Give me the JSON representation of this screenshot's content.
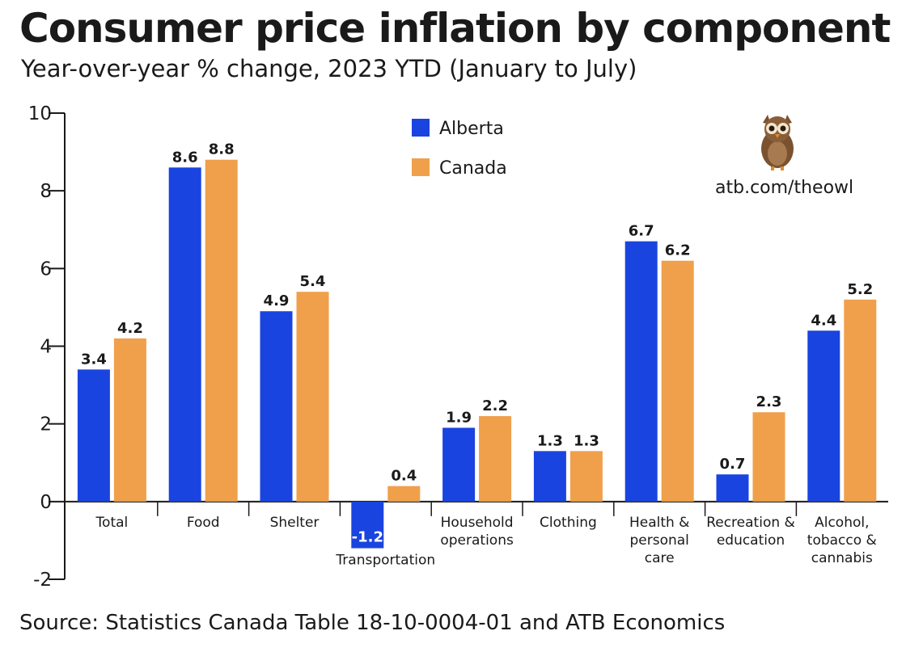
{
  "title": "Consumer price inflation by component",
  "subtitle": "Year-over-year % change, 2023 YTD (January to July)",
  "source": "Source: Statistics Canada Table 18-10-0004-01 and ATB Economics",
  "brand": {
    "url": "atb.com/theowl",
    "logo_icon": "owl-icon"
  },
  "colors": {
    "alberta": "#1a44e0",
    "canada": "#f0a04b",
    "text": "#1a1a1a"
  },
  "chart_data": {
    "type": "bar",
    "title": "Consumer price inflation by component",
    "xlabel": "",
    "ylabel": "",
    "ylim": [
      -2,
      10
    ],
    "yticks": [
      -2,
      0,
      2,
      4,
      6,
      8,
      10
    ],
    "grid": false,
    "legend_position": "top-center",
    "categories": [
      [
        "Total"
      ],
      [
        "Food"
      ],
      [
        "Shelter"
      ],
      [
        "Transportation"
      ],
      [
        "Household",
        "operations"
      ],
      [
        "Clothing"
      ],
      [
        "Health &",
        "personal",
        "care"
      ],
      [
        "Recreation &",
        "education"
      ],
      [
        "Alcohol,",
        "tobacco &",
        "cannabis"
      ]
    ],
    "series": [
      {
        "name": "Alberta",
        "color": "#1a44e0",
        "values": [
          3.4,
          8.6,
          4.9,
          -1.2,
          1.9,
          1.3,
          6.7,
          0.7,
          4.4
        ]
      },
      {
        "name": "Canada",
        "color": "#f0a04b",
        "values": [
          4.2,
          8.8,
          5.4,
          0.4,
          2.2,
          1.3,
          6.2,
          2.3,
          5.2
        ]
      }
    ]
  }
}
